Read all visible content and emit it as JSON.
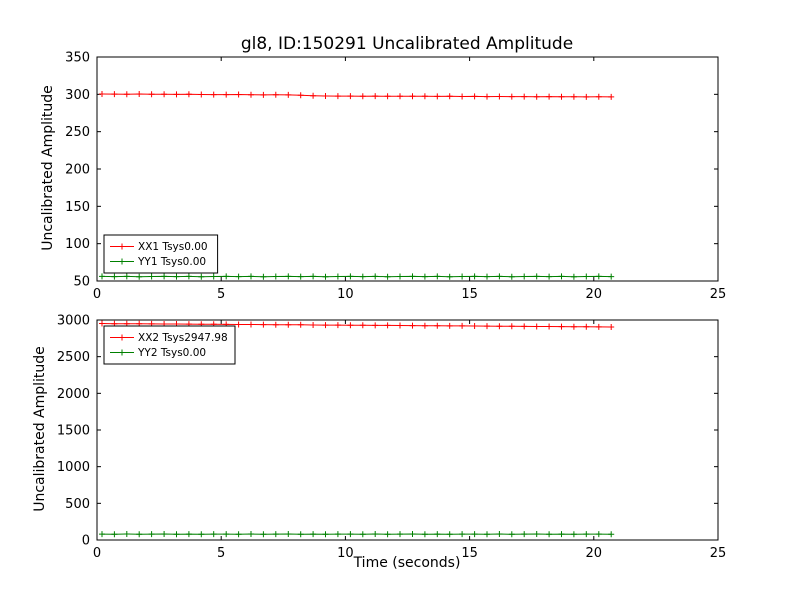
{
  "figure": {
    "title": "gl8, ID:150291 Uncalibrated Amplitude",
    "xlabel": "Time (seconds)",
    "background": "#ffffff",
    "axis_color": "#000000"
  },
  "chart_data": [
    {
      "type": "line",
      "ylabel": "Uncalibrated Amplitude",
      "xlim": [
        0,
        25
      ],
      "ylim": [
        50,
        350
      ],
      "xticks": [
        0,
        5,
        10,
        15,
        20,
        25
      ],
      "yticks": [
        50,
        100,
        150,
        200,
        250,
        300,
        350
      ],
      "grid": false,
      "legend": {
        "position": "lower-left",
        "entries": [
          {
            "label": "XX1 Tsys0.00",
            "color": "#ff0000"
          },
          {
            "label": "YY1 Tsys0.00",
            "color": "#008000"
          }
        ]
      },
      "x": [
        0.2,
        0.7,
        1.2,
        1.7,
        2.2,
        2.7,
        3.2,
        3.7,
        4.2,
        4.7,
        5.2,
        5.7,
        6.2,
        6.7,
        7.2,
        7.7,
        8.2,
        8.7,
        9.2,
        9.7,
        10.2,
        10.7,
        11.2,
        11.7,
        12.2,
        12.7,
        13.2,
        13.7,
        14.2,
        14.7,
        15.2,
        15.7,
        16.2,
        16.7,
        17.2,
        17.7,
        18.2,
        18.7,
        19.2,
        19.7,
        20.2,
        20.7
      ],
      "series": [
        {
          "name": "XX1 Tsys0.00",
          "color": "#ff0000",
          "marker": "+",
          "values": [
            300.5,
            300.3,
            300.2,
            300.4,
            300.1,
            300.0,
            299.9,
            300.1,
            299.8,
            299.7,
            299.6,
            299.8,
            299.5,
            299.3,
            299.4,
            299.2,
            298.9,
            298.2,
            297.8,
            297.6,
            297.7,
            297.5,
            297.6,
            297.4,
            297.5,
            297.3,
            297.4,
            297.2,
            297.3,
            297.1,
            297.2,
            297.0,
            297.1,
            296.9,
            297.0,
            296.8,
            296.9,
            296.7,
            296.8,
            296.6,
            296.7,
            296.5
          ]
        },
        {
          "name": "YY1 Tsys0.00",
          "color": "#008000",
          "marker": "+",
          "values": [
            56.1,
            55.9,
            56.2,
            55.8,
            56.0,
            56.2,
            55.9,
            56.1,
            55.8,
            56.0,
            56.1,
            55.9,
            56.2,
            55.8,
            56.0,
            56.2,
            55.9,
            56.1,
            55.8,
            56.0,
            56.1,
            55.9,
            56.2,
            55.8,
            56.0,
            56.2,
            55.9,
            56.1,
            55.8,
            56.0,
            56.1,
            55.9,
            56.2,
            55.8,
            56.0,
            56.2,
            55.9,
            56.1,
            55.8,
            56.0,
            56.1,
            55.9
          ]
        }
      ]
    },
    {
      "type": "line",
      "ylabel": "Uncalibrated Amplitude",
      "xlabel": "Time (seconds)",
      "xlim": [
        0,
        25
      ],
      "ylim": [
        0,
        3000
      ],
      "xticks": [
        0,
        5,
        10,
        15,
        20,
        25
      ],
      "yticks": [
        0,
        500,
        1000,
        1500,
        2000,
        2500,
        3000
      ],
      "grid": false,
      "legend": {
        "position": "upper-left",
        "entries": [
          {
            "label": "XX2 Tsys2947.98",
            "color": "#ff0000"
          },
          {
            "label": "YY2 Tsys0.00",
            "color": "#008000"
          }
        ]
      },
      "x": [
        0.2,
        0.7,
        1.2,
        1.7,
        2.2,
        2.7,
        3.2,
        3.7,
        4.2,
        4.7,
        5.2,
        5.7,
        6.2,
        6.7,
        7.2,
        7.7,
        8.2,
        8.7,
        9.2,
        9.7,
        10.2,
        10.7,
        11.2,
        11.7,
        12.2,
        12.7,
        13.2,
        13.7,
        14.2,
        14.7,
        15.2,
        15.7,
        16.2,
        16.7,
        17.2,
        17.7,
        18.2,
        18.7,
        19.2,
        19.7,
        20.2,
        20.7
      ],
      "series": [
        {
          "name": "XX2 Tsys2947.98",
          "color": "#ff0000",
          "marker": "+",
          "values": [
            2952,
            2950,
            2949,
            2948,
            2947,
            2946,
            2945,
            2944,
            2943,
            2941,
            2940,
            2939,
            2938,
            2937,
            2936,
            2935,
            2934,
            2932,
            2931,
            2930,
            2929,
            2928,
            2927,
            2926,
            2925,
            2923,
            2922,
            2921,
            2920,
            2919,
            2918,
            2917,
            2916,
            2914,
            2913,
            2912,
            2911,
            2910,
            2909,
            2908,
            2906,
            2905
          ]
        },
        {
          "name": "YY2 Tsys0.00",
          "color": "#008000",
          "marker": "+",
          "values": [
            81,
            79,
            82,
            78,
            80,
            82,
            79,
            81,
            78,
            80,
            81,
            79,
            82,
            78,
            80,
            82,
            79,
            81,
            78,
            80,
            81,
            79,
            82,
            78,
            80,
            82,
            79,
            81,
            78,
            80,
            81,
            79,
            82,
            78,
            80,
            82,
            79,
            81,
            78,
            80,
            81,
            79
          ]
        }
      ]
    }
  ]
}
